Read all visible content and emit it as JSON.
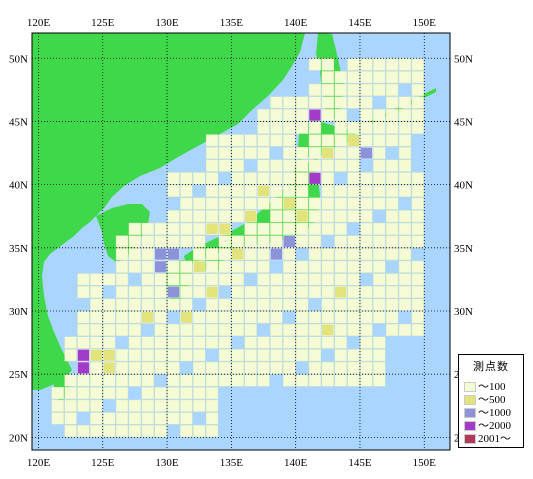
{
  "map": {
    "lon_labels": [
      "120E",
      "125E",
      "130E",
      "135E",
      "140E",
      "145E",
      "150E"
    ],
    "lat_labels": [
      "50N",
      "45N",
      "40N",
      "35N",
      "30N",
      "25N",
      "20N"
    ],
    "lon_range": [
      119.5,
      152
    ],
    "lat_range": [
      19,
      52
    ],
    "colors": {
      "sea": "#aad5ff",
      "land": "#3fd84a",
      "grid": "#000000"
    }
  },
  "legend": {
    "title": "測点数",
    "items": [
      {
        "label": "～100",
        "color": "#f5fbd4"
      },
      {
        "label": "～500",
        "color": "#e2e37a"
      },
      {
        "label": "～1000",
        "color": "#8c93d8"
      },
      {
        "label": "～2000",
        "color": "#a23cc8"
      },
      {
        "label": "2001～",
        "color": "#b03a5a"
      }
    ]
  }
}
